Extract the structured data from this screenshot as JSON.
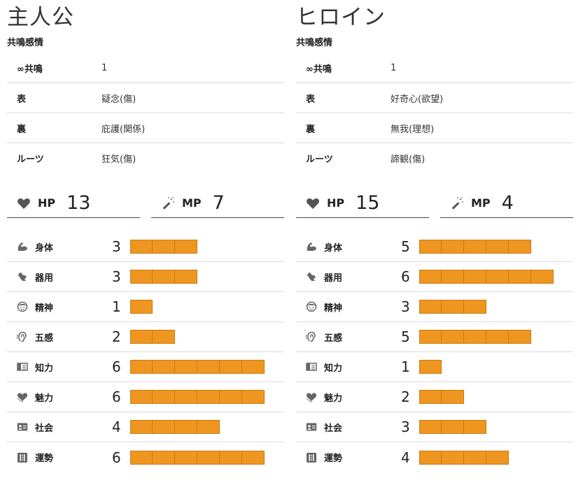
{
  "characters": [
    {
      "title": "主人公",
      "section_label": "共鳴感情",
      "emotions": [
        {
          "key": "∞共鳴",
          "value": "1"
        },
        {
          "key": "表",
          "value": "疑念(傷)"
        },
        {
          "key": "裏",
          "value": "庇護(関係)"
        },
        {
          "key": "ルーツ",
          "value": "狂気(傷)"
        }
      ],
      "hp": {
        "label": "HP",
        "value": "13"
      },
      "mp": {
        "label": "MP",
        "value": "7"
      },
      "stats": [
        {
          "icon": "arm-icon",
          "name": "身体",
          "value": 3
        },
        {
          "icon": "hand-icon",
          "name": "器用",
          "value": 3
        },
        {
          "icon": "face-icon",
          "name": "精神",
          "value": 1
        },
        {
          "icon": "ear-icon",
          "name": "五感",
          "value": 2
        },
        {
          "icon": "book-icon",
          "name": "知力",
          "value": 6
        },
        {
          "icon": "heart-hand-icon",
          "name": "魅力",
          "value": 6
        },
        {
          "icon": "id-card-icon",
          "name": "社会",
          "value": 4
        },
        {
          "icon": "dice-icon",
          "name": "運勢",
          "value": 6
        }
      ]
    },
    {
      "title": "ヒロイン",
      "section_label": "共鳴感情",
      "emotions": [
        {
          "key": "∞共鳴",
          "value": "1"
        },
        {
          "key": "表",
          "value": "好奇心(欲望)"
        },
        {
          "key": "裏",
          "value": "無我(理想)"
        },
        {
          "key": "ルーツ",
          "value": "諦観(傷)"
        }
      ],
      "hp": {
        "label": "HP",
        "value": "15"
      },
      "mp": {
        "label": "MP",
        "value": "4"
      },
      "stats": [
        {
          "icon": "arm-icon",
          "name": "身体",
          "value": 5
        },
        {
          "icon": "hand-icon",
          "name": "器用",
          "value": 6
        },
        {
          "icon": "face-icon",
          "name": "精神",
          "value": 3
        },
        {
          "icon": "ear-icon",
          "name": "五感",
          "value": 5
        },
        {
          "icon": "book-icon",
          "name": "知力",
          "value": 1
        },
        {
          "icon": "heart-hand-icon",
          "name": "魅力",
          "value": 2
        },
        {
          "icon": "id-card-icon",
          "name": "社会",
          "value": 3
        },
        {
          "icon": "dice-icon",
          "name": "運勢",
          "value": 4
        }
      ]
    }
  ],
  "colors": {
    "bar_fill": "#ef9620",
    "bar_border": "#c77d16",
    "icon": "#666666"
  }
}
